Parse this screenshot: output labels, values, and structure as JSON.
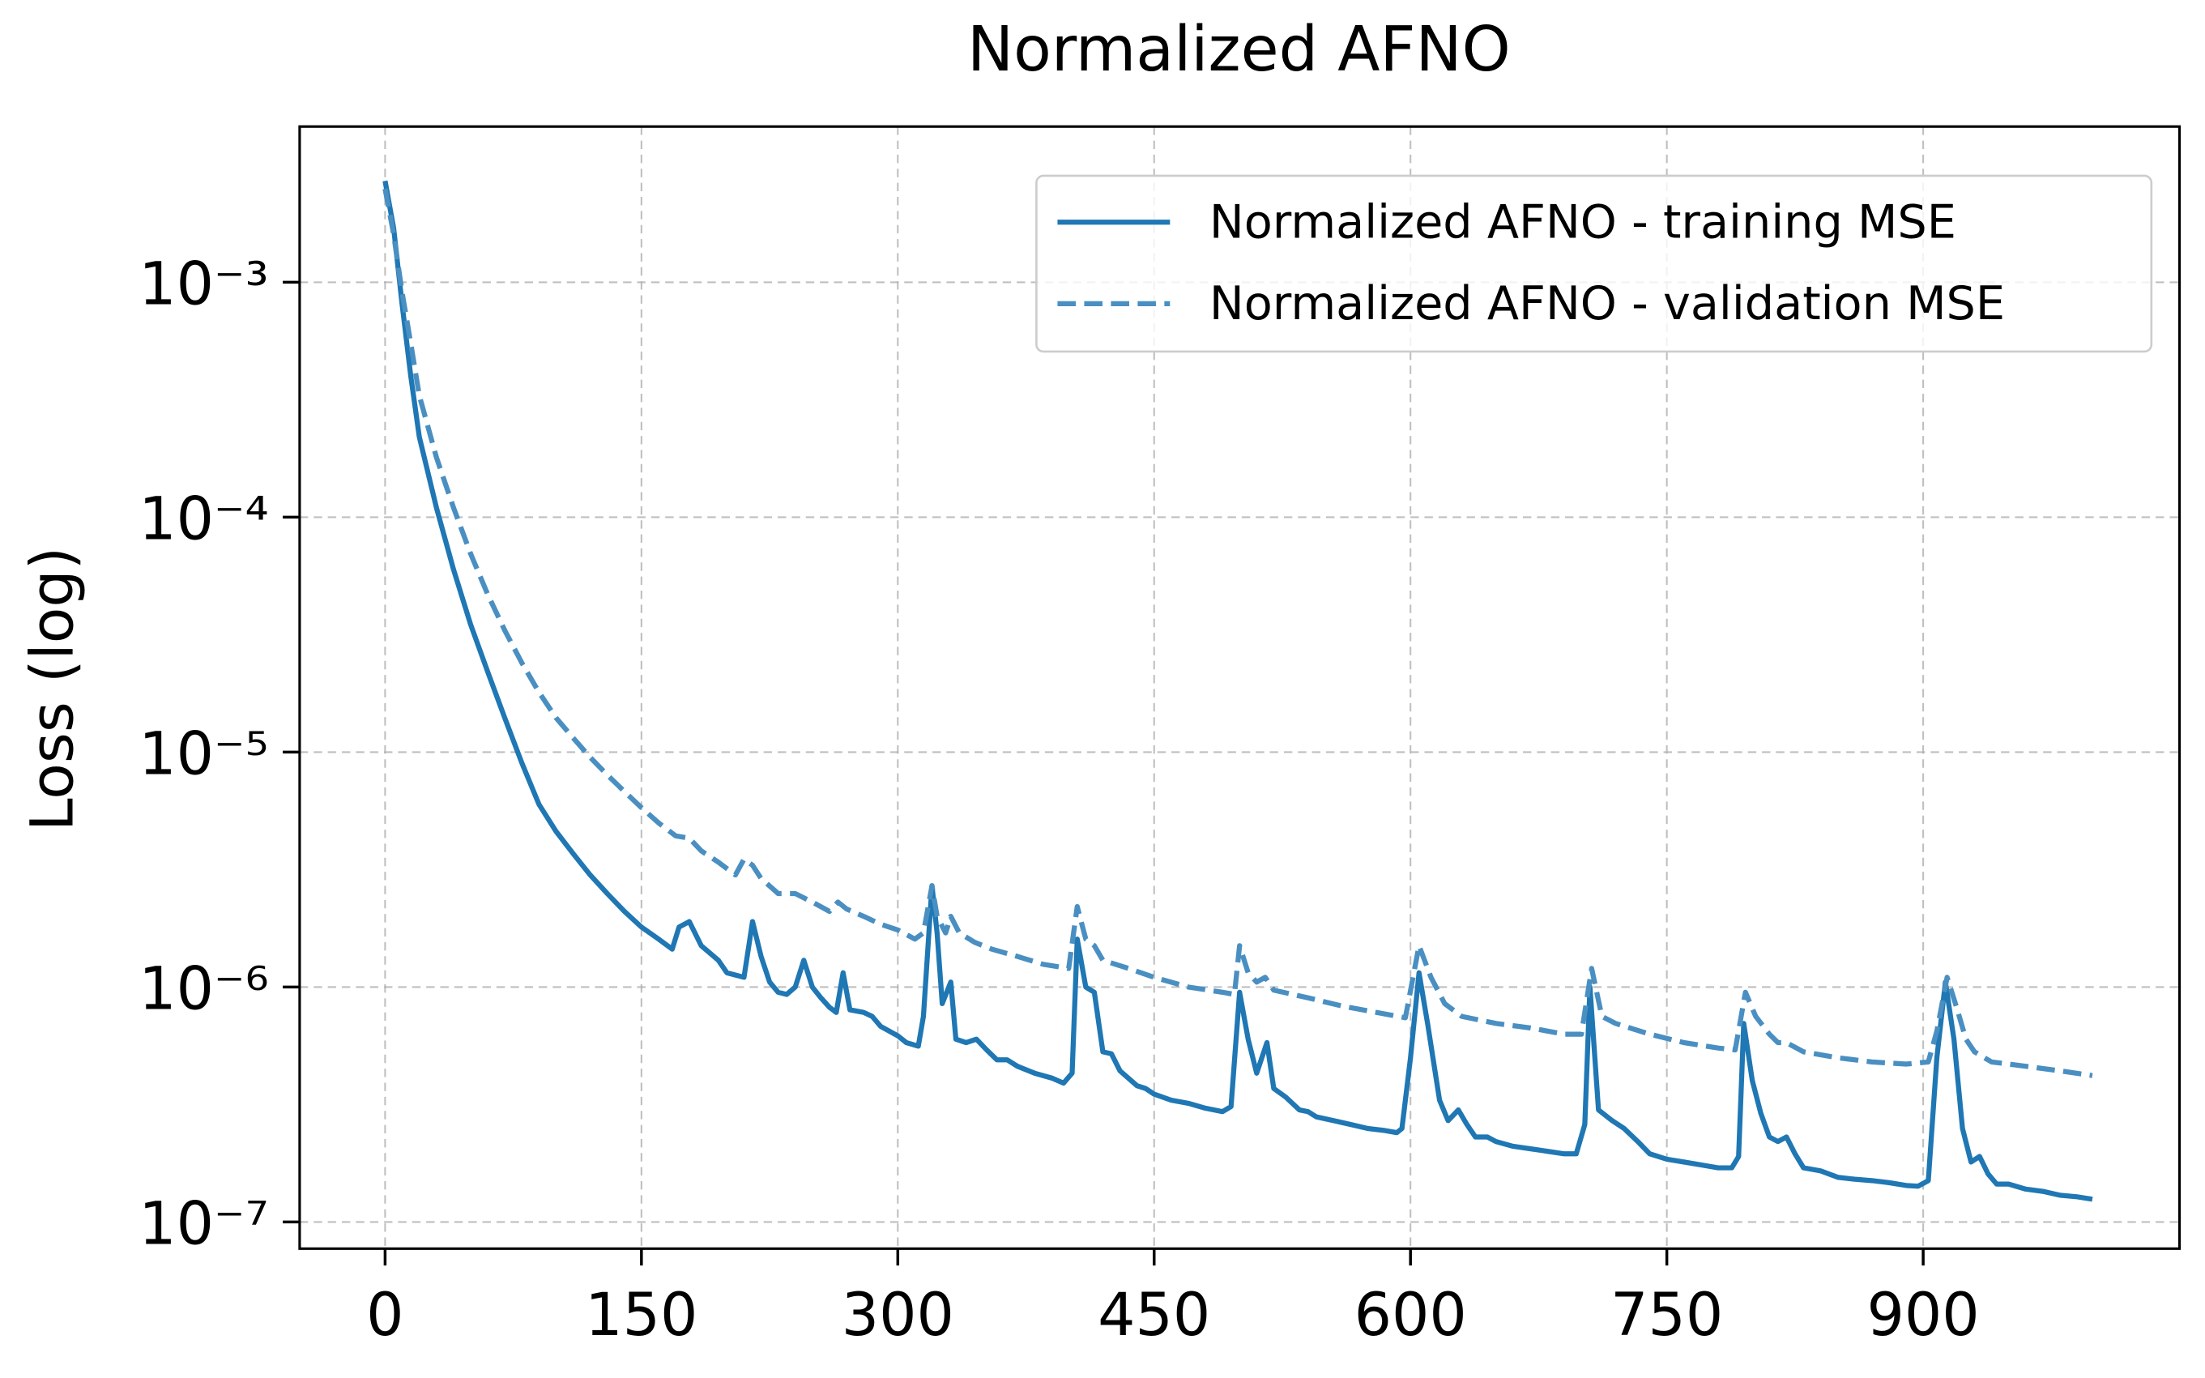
{
  "chart_data": {
    "type": "line",
    "title": "Normalized AFNO",
    "y_label": "Loss (log)",
    "y_scale": "log",
    "grid": true,
    "legend": "upper right",
    "xlim": [
      -50,
      1050
    ],
    "ylim": [
      7.7e-08,
      0.0046
    ],
    "xticks": [
      0,
      150,
      300,
      450,
      600,
      750,
      900
    ],
    "yticks": [
      {
        "value": 0.001,
        "label": "10⁻³"
      },
      {
        "value": 0.0001,
        "label": "10⁻⁴"
      },
      {
        "value": 1e-05,
        "label": "10⁻⁵"
      },
      {
        "value": 1e-06,
        "label": "10⁻⁶"
      },
      {
        "value": 1e-07,
        "label": "10⁻⁷"
      }
    ],
    "series": [
      {
        "name": "Normalized AFNO - training MSE",
        "color": "#1f77b4",
        "linestyle": "solid",
        "x": [
          0,
          5,
          10,
          15,
          20,
          30,
          40,
          50,
          60,
          70,
          80,
          90,
          100,
          110,
          120,
          130,
          140,
          150,
          160,
          168,
          172,
          178,
          185,
          195,
          200,
          210,
          215,
          220,
          225,
          230,
          235,
          240,
          245,
          250,
          255,
          260,
          264,
          268,
          272,
          280,
          285,
          290,
          300,
          305,
          312,
          315,
          320,
          323,
          326,
          331,
          334,
          340,
          346,
          352,
          358,
          364,
          370,
          380,
          390,
          397,
          402,
          405,
          410,
          415,
          420,
          425,
          430,
          440,
          445,
          450,
          460,
          470,
          480,
          490,
          495,
          500,
          505,
          510,
          516,
          520,
          527,
          535,
          540,
          545,
          555,
          565,
          575,
          585,
          592,
          595,
          600,
          605,
          610,
          617,
          622,
          628,
          633,
          638,
          645,
          650,
          660,
          670,
          680,
          690,
          697,
          702,
          705,
          710,
          718,
          725,
          733,
          740,
          750,
          760,
          770,
          780,
          788,
          792,
          795,
          800,
          805,
          810,
          815,
          820,
          825,
          830,
          840,
          850,
          860,
          870,
          880,
          890,
          897,
          903,
          908,
          913,
          918,
          923,
          928,
          933,
          938,
          943,
          950,
          960,
          970,
          980,
          990,
          999
        ],
        "values": [
          0.0027,
          0.0017,
          0.0008,
          0.0004,
          0.00022,
          0.00011,
          6e-05,
          3.5e-05,
          2.2e-05,
          1.4e-05,
          9e-06,
          6e-06,
          4.6e-06,
          3.7e-06,
          3e-06,
          2.5e-06,
          2.1e-06,
          1.8e-06,
          1.6e-06,
          1.45e-06,
          1.8e-06,
          1.9e-06,
          1.5e-06,
          1.3e-06,
          1.15e-06,
          1.1e-06,
          1.9e-06,
          1.35e-06,
          1.05e-06,
          9.5e-07,
          9.3e-07,
          1e-06,
          1.3e-06,
          1e-06,
          9e-07,
          8.2e-07,
          7.8e-07,
          1.15e-06,
          8e-07,
          7.8e-07,
          7.5e-07,
          6.8e-07,
          6.2e-07,
          5.8e-07,
          5.6e-07,
          7.5e-07,
          2.7e-06,
          1.7e-06,
          8.5e-07,
          1.05e-06,
          6e-07,
          5.8e-07,
          6e-07,
          5.4e-07,
          4.9e-07,
          4.9e-07,
          4.6e-07,
          4.3e-07,
          4.1e-07,
          3.9e-07,
          4.3e-07,
          1.6e-06,
          1e-06,
          9.5e-07,
          5.3e-07,
          5.2e-07,
          4.4e-07,
          3.8e-07,
          3.7e-07,
          3.5e-07,
          3.3e-07,
          3.2e-07,
          3.05e-07,
          2.95e-07,
          3.1e-07,
          9.5e-07,
          6e-07,
          4.3e-07,
          5.8e-07,
          3.7e-07,
          3.4e-07,
          3e-07,
          2.95e-07,
          2.8e-07,
          2.7e-07,
          2.6e-07,
          2.5e-07,
          2.45e-07,
          2.4e-07,
          2.5e-07,
          5e-07,
          1.15e-06,
          7e-07,
          3.3e-07,
          2.7e-07,
          3e-07,
          2.6e-07,
          2.3e-07,
          2.3e-07,
          2.2e-07,
          2.1e-07,
          2.05e-07,
          2e-07,
          1.95e-07,
          1.95e-07,
          2.6e-07,
          1e-06,
          3e-07,
          2.7e-07,
          2.5e-07,
          2.2e-07,
          1.95e-07,
          1.85e-07,
          1.8e-07,
          1.75e-07,
          1.7e-07,
          1.7e-07,
          1.9e-07,
          7e-07,
          4e-07,
          2.9e-07,
          2.3e-07,
          2.2e-07,
          2.3e-07,
          1.95e-07,
          1.7e-07,
          1.65e-07,
          1.55e-07,
          1.52e-07,
          1.5e-07,
          1.47e-07,
          1.43e-07,
          1.42e-07,
          1.5e-07,
          5e-07,
          1.05e-06,
          6e-07,
          2.5e-07,
          1.8e-07,
          1.9e-07,
          1.6e-07,
          1.45e-07,
          1.45e-07,
          1.38e-07,
          1.35e-07,
          1.3e-07,
          1.28e-07,
          1.25e-07
        ]
      },
      {
        "name": "Normalized AFNO - validation MSE",
        "color": "#4a8fc2",
        "linestyle": "dashed",
        "x": [
          0,
          5,
          10,
          15,
          20,
          30,
          40,
          50,
          60,
          70,
          80,
          90,
          100,
          110,
          120,
          130,
          140,
          150,
          160,
          170,
          178,
          185,
          195,
          205,
          210,
          215,
          220,
          230,
          240,
          250,
          260,
          265,
          270,
          280,
          290,
          300,
          310,
          315,
          320,
          323,
          328,
          331,
          336,
          345,
          355,
          370,
          385,
          400,
          405,
          410,
          415,
          420,
          435,
          450,
          470,
          490,
          497,
          500,
          505,
          510,
          515,
          520,
          540,
          560,
          580,
          597,
          605,
          612,
          620,
          630,
          650,
          670,
          690,
          700,
          706,
          712,
          720,
          740,
          760,
          780,
          790,
          796,
          802,
          810,
          815,
          820,
          830,
          850,
          870,
          890,
          903,
          908,
          914,
          920,
          925,
          930,
          940,
          960,
          980,
          999
        ],
        "values": [
          0.0025,
          0.0016,
          0.0009,
          0.00055,
          0.00033,
          0.00018,
          0.00011,
          7e-05,
          4.7e-05,
          3.3e-05,
          2.4e-05,
          1.8e-05,
          1.4e-05,
          1.15e-05,
          9.5e-06,
          8e-06,
          6.8e-06,
          5.8e-06,
          5e-06,
          4.4e-06,
          4.3e-06,
          3.8e-06,
          3.4e-06,
          3e-06,
          3.5e-06,
          3.3e-06,
          2.9e-06,
          2.5e-06,
          2.5e-06,
          2.3e-06,
          2.1e-06,
          2.3e-06,
          2.15e-06,
          2e-06,
          1.85e-06,
          1.75e-06,
          1.6e-06,
          1.7e-06,
          2.7e-06,
          2e-06,
          1.7e-06,
          2e-06,
          1.7e-06,
          1.55e-06,
          1.45e-06,
          1.35e-06,
          1.25e-06,
          1.2e-06,
          2.2e-06,
          1.6e-06,
          1.5e-06,
          1.3e-06,
          1.2e-06,
          1.1e-06,
          1e-06,
          9.5e-07,
          9.3e-07,
          1.5e-06,
          1.15e-06,
          1.05e-06,
          1.1e-06,
          9.7e-07,
          9e-07,
          8.3e-07,
          7.8e-07,
          7.4e-07,
          1.5e-06,
          1.1e-06,
          8.5e-07,
          7.5e-07,
          7e-07,
          6.7e-07,
          6.3e-07,
          6.3e-07,
          1.2e-06,
          7.5e-07,
          7e-07,
          6.3e-07,
          5.8e-07,
          5.5e-07,
          5.4e-07,
          9.5e-07,
          7.5e-07,
          6.3e-07,
          5.8e-07,
          5.8e-07,
          5.3e-07,
          5e-07,
          4.8e-07,
          4.7e-07,
          4.8e-07,
          6.5e-07,
          1.1e-06,
          8e-07,
          6e-07,
          5.3e-07,
          4.8e-07,
          4.6e-07,
          4.4e-07,
          4.2e-07
        ]
      }
    ]
  }
}
